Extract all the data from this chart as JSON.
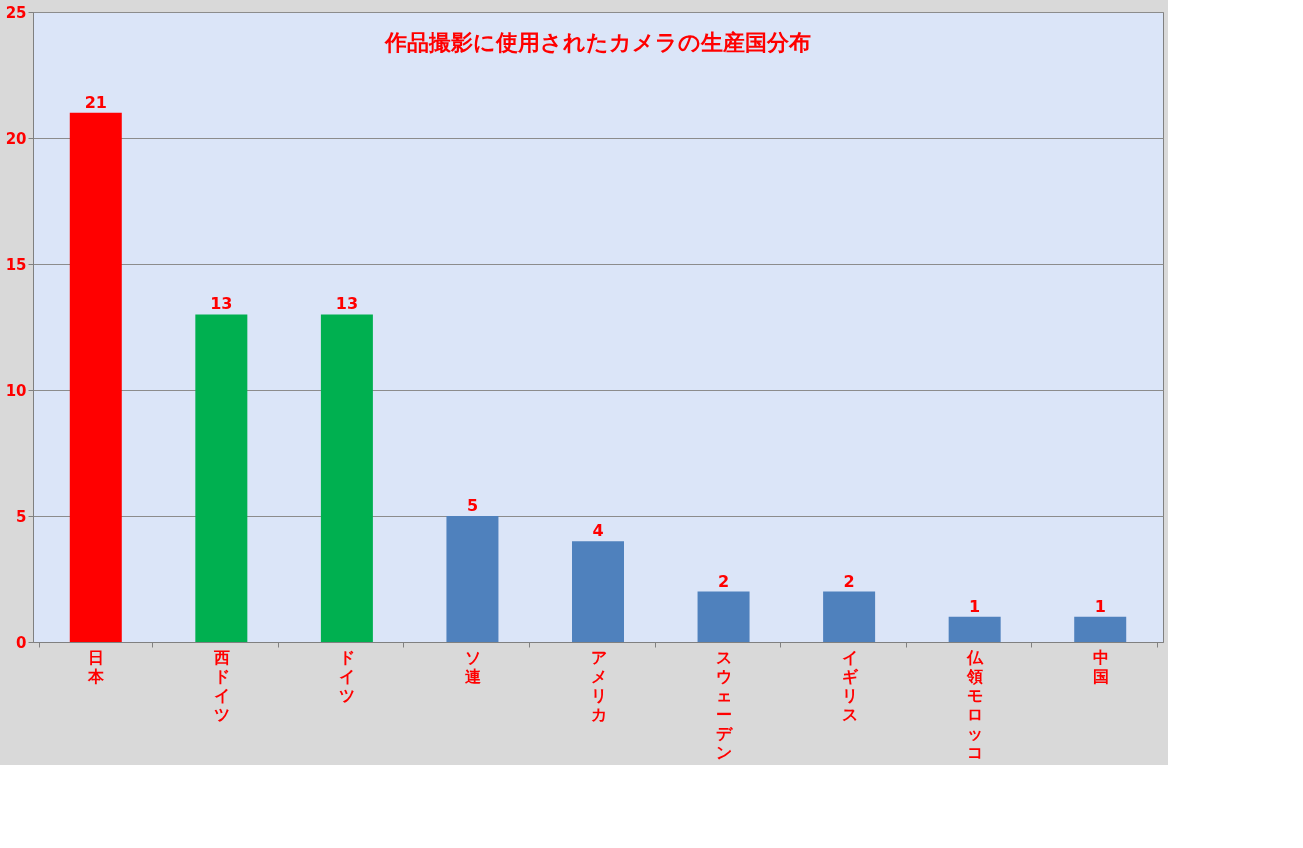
{
  "chart_data": {
    "type": "bar",
    "title": "作品撮影に使用されたカメラの生産国分布",
    "categories": [
      "日本",
      "西ドイツ",
      "ドイツ",
      "ソ連",
      "アメリカ",
      "スウェーデン",
      "イギリス",
      "仏領モロッコ",
      "中国"
    ],
    "values": [
      21,
      13,
      13,
      5,
      4,
      2,
      2,
      1,
      1
    ],
    "colors": [
      "#ff0000",
      "#00b050",
      "#00b050",
      "#4f81bd",
      "#4f81bd",
      "#4f81bd",
      "#4f81bd",
      "#4f81bd",
      "#4f81bd"
    ],
    "ylim": [
      0,
      25
    ],
    "yticks": [
      0,
      5,
      10,
      15,
      20,
      25
    ],
    "grid": "y",
    "data_labels": true,
    "legend": false
  }
}
